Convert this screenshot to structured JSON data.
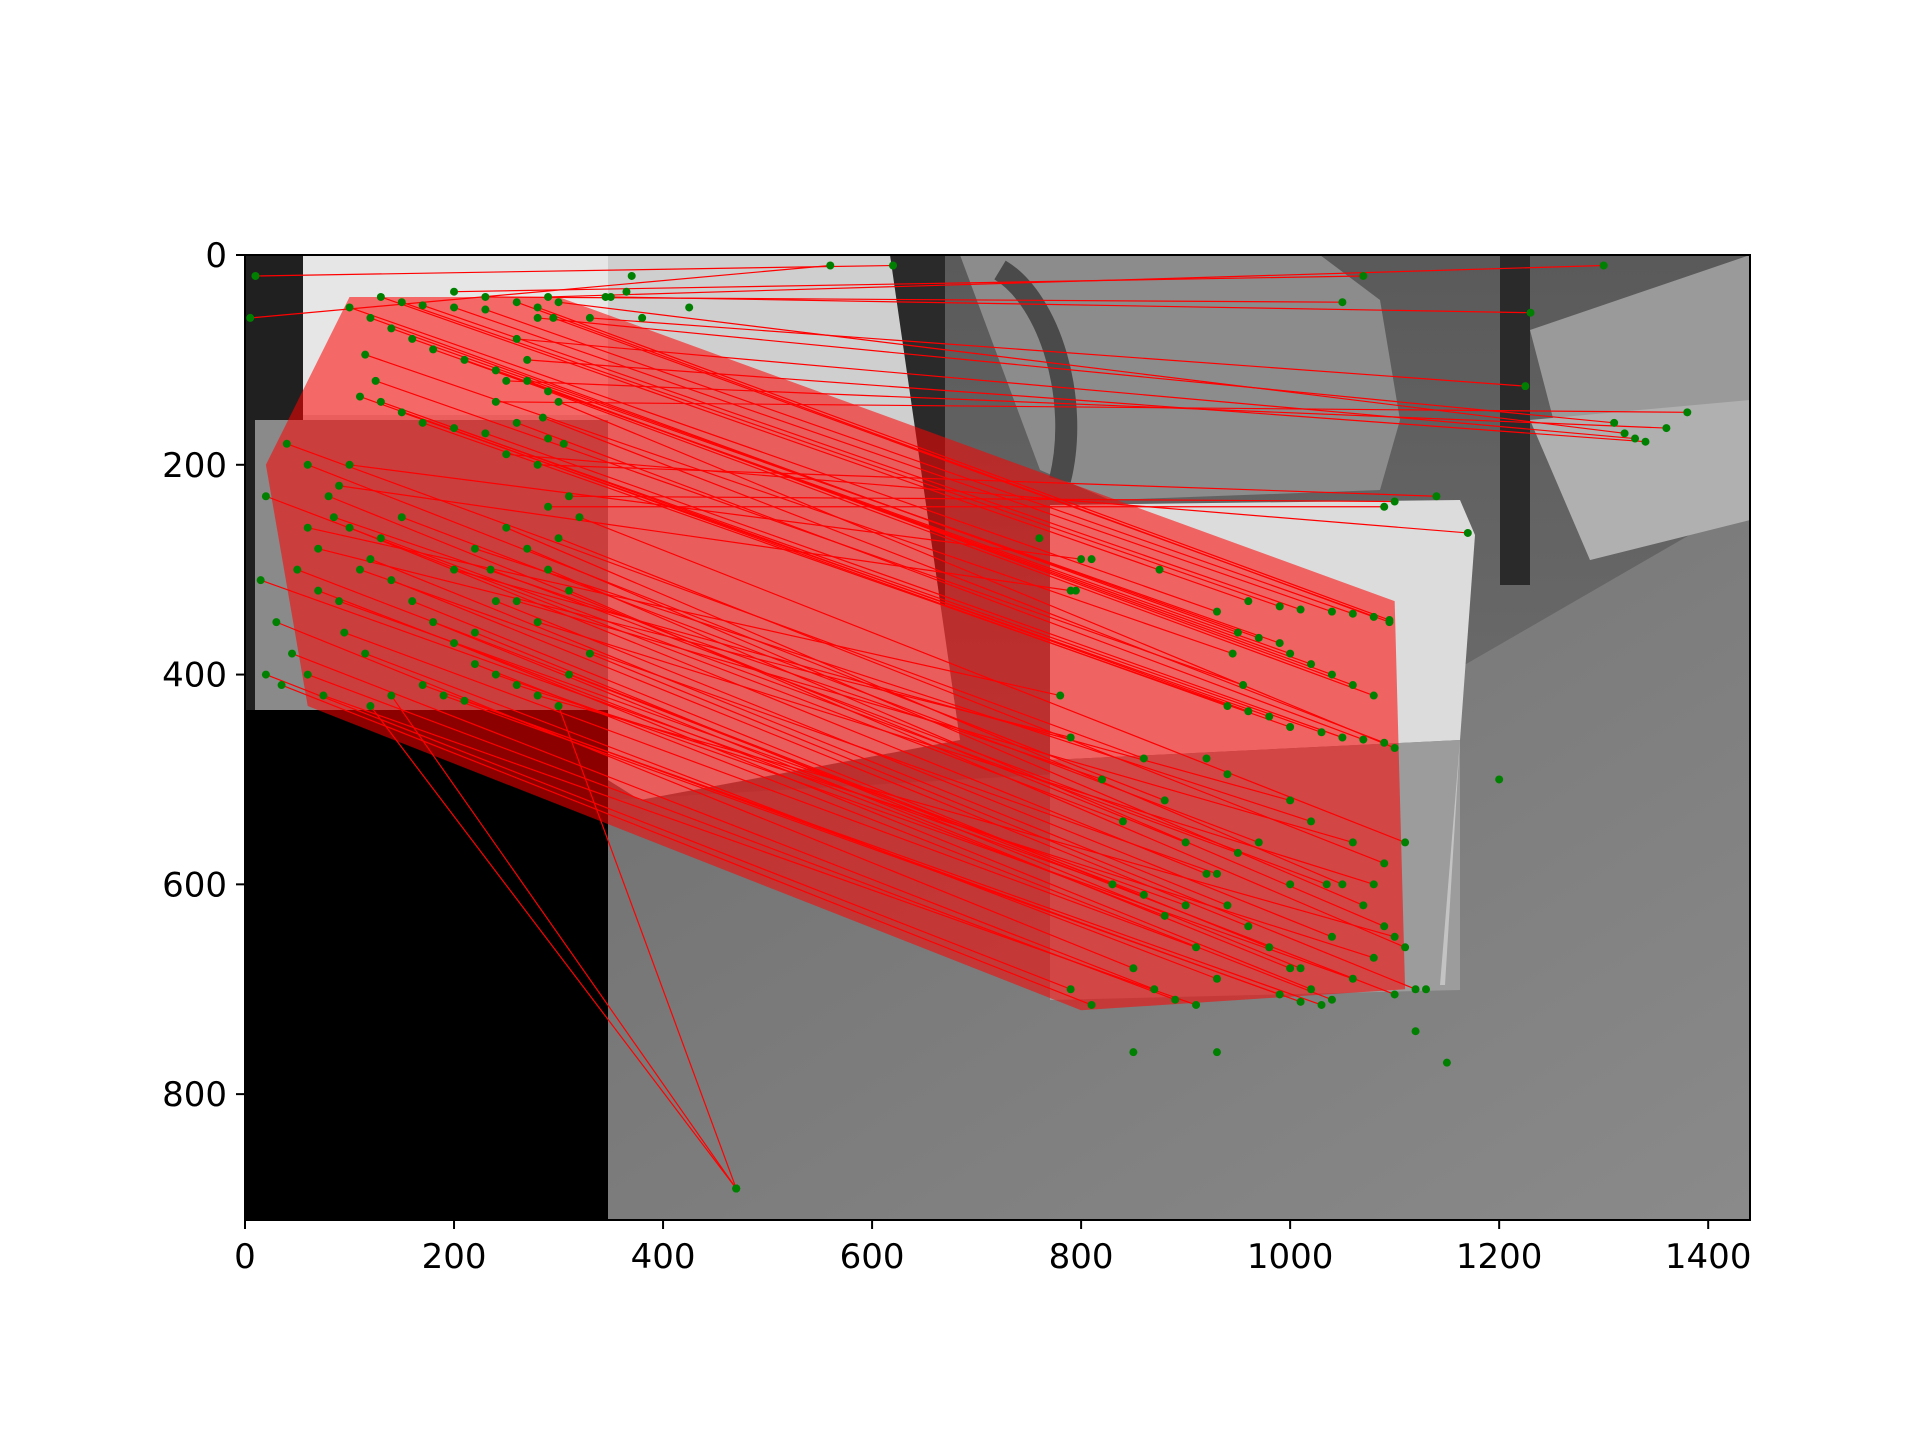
{
  "chart_data": {
    "type": "scatter",
    "title": "",
    "xlabel": "",
    "ylabel": "",
    "xlim": [
      0,
      1440
    ],
    "ylim": [
      920,
      0
    ],
    "x_ticks": [
      0,
      200,
      400,
      600,
      800,
      1000,
      1200,
      1400
    ],
    "x_tick_labels": [
      "0",
      "200",
      "400",
      "600",
      "800",
      "1000",
      "1200",
      "1400"
    ],
    "y_ticks": [
      0,
      200,
      400,
      600,
      800
    ],
    "y_tick_labels": [
      "0",
      "200",
      "400",
      "600",
      "800"
    ],
    "grid": false,
    "legend": "none",
    "background_image": "grayscale photo: book box on carpet (right) with query book cover inset (top-left, x 0-350, y 0-440, black below)",
    "line_color": "#ff0000",
    "point_color": "#008000",
    "matches": [
      [
        [
          130,
          40
        ],
        [
          960,
          330
        ]
      ],
      [
        [
          150,
          45
        ],
        [
          990,
          335
        ]
      ],
      [
        [
          170,
          48
        ],
        [
          1010,
          338
        ]
      ],
      [
        [
          200,
          50
        ],
        [
          1040,
          340
        ]
      ],
      [
        [
          230,
          52
        ],
        [
          1060,
          342
        ]
      ],
      [
        [
          260,
          45
        ],
        [
          1080,
          345
        ]
      ],
      [
        [
          280,
          50
        ],
        [
          1095,
          348
        ]
      ],
      [
        [
          120,
          60
        ],
        [
          950,
          360
        ]
      ],
      [
        [
          140,
          70
        ],
        [
          970,
          365
        ]
      ],
      [
        [
          160,
          80
        ],
        [
          990,
          370
        ]
      ],
      [
        [
          180,
          90
        ],
        [
          1000,
          380
        ]
      ],
      [
        [
          210,
          100
        ],
        [
          1020,
          390
        ]
      ],
      [
        [
          240,
          110
        ],
        [
          1040,
          400
        ]
      ],
      [
        [
          270,
          120
        ],
        [
          1060,
          410
        ]
      ],
      [
        [
          290,
          130
        ],
        [
          1080,
          420
        ]
      ],
      [
        [
          110,
          135
        ],
        [
          940,
          430
        ]
      ],
      [
        [
          130,
          140
        ],
        [
          960,
          435
        ]
      ],
      [
        [
          150,
          150
        ],
        [
          980,
          440
        ]
      ],
      [
        [
          170,
          160
        ],
        [
          1000,
          450
        ]
      ],
      [
        [
          200,
          165
        ],
        [
          1030,
          455
        ]
      ],
      [
        [
          230,
          170
        ],
        [
          1050,
          460
        ]
      ],
      [
        [
          260,
          160
        ],
        [
          1070,
          462
        ]
      ],
      [
        [
          285,
          155
        ],
        [
          1090,
          465
        ]
      ],
      [
        [
          300,
          140
        ],
        [
          1100,
          470
        ]
      ],
      [
        [
          100,
          50
        ],
        [
          930,
          340
        ]
      ],
      [
        [
          115,
          95
        ],
        [
          945,
          380
        ]
      ],
      [
        [
          125,
          120
        ],
        [
          955,
          410
        ]
      ],
      [
        [
          295,
          60
        ],
        [
          1095,
          350
        ]
      ],
      [
        [
          60,
          200
        ],
        [
          880,
          520
        ]
      ],
      [
        [
          80,
          230
        ],
        [
          900,
          560
        ]
      ],
      [
        [
          100,
          260
        ],
        [
          920,
          590
        ]
      ],
      [
        [
          120,
          290
        ],
        [
          940,
          620
        ]
      ],
      [
        [
          140,
          310
        ],
        [
          960,
          640
        ]
      ],
      [
        [
          160,
          330
        ],
        [
          980,
          660
        ]
      ],
      [
        [
          180,
          350
        ],
        [
          1000,
          680
        ]
      ],
      [
        [
          200,
          370
        ],
        [
          1020,
          700
        ]
      ],
      [
        [
          220,
          390
        ],
        [
          1040,
          710
        ]
      ],
      [
        [
          240,
          400
        ],
        [
          1060,
          690
        ]
      ],
      [
        [
          260,
          410
        ],
        [
          1080,
          670
        ]
      ],
      [
        [
          280,
          420
        ],
        [
          1100,
          650
        ]
      ],
      [
        [
          30,
          350
        ],
        [
          850,
          680
        ]
      ],
      [
        [
          45,
          380
        ],
        [
          870,
          700
        ]
      ],
      [
        [
          60,
          400
        ],
        [
          890,
          710
        ]
      ],
      [
        [
          75,
          420
        ],
        [
          910,
          715
        ]
      ],
      [
        [
          90,
          330
        ],
        [
          900,
          620
        ]
      ],
      [
        [
          110,
          300
        ],
        [
          930,
          590
        ]
      ],
      [
        [
          130,
          270
        ],
        [
          950,
          570
        ]
      ],
      [
        [
          150,
          250
        ],
        [
          970,
          560
        ]
      ],
      [
        [
          250,
          260
        ],
        [
          1050,
          600
        ]
      ],
      [
        [
          270,
          280
        ],
        [
          1070,
          620
        ]
      ],
      [
        [
          290,
          300
        ],
        [
          1090,
          640
        ]
      ],
      [
        [
          310,
          320
        ],
        [
          1110,
          660
        ]
      ],
      [
        [
          320,
          250
        ],
        [
          1110,
          560
        ]
      ],
      [
        [
          300,
          270
        ],
        [
          1090,
          580
        ]
      ],
      [
        [
          240,
          330
        ],
        [
          1040,
          650
        ]
      ],
      [
        [
          220,
          360
        ],
        [
          1010,
          680
        ]
      ],
      [
        [
          40,
          180
        ],
        [
          860,
          480
        ]
      ],
      [
        [
          20,
          230
        ],
        [
          840,
          540
        ]
      ],
      [
        [
          15,
          310
        ],
        [
          830,
          600
        ]
      ],
      [
        [
          50,
          300
        ],
        [
          860,
          610
        ]
      ],
      [
        [
          70,
          320
        ],
        [
          880,
          630
        ]
      ],
      [
        [
          95,
          360
        ],
        [
          910,
          660
        ]
      ],
      [
        [
          115,
          380
        ],
        [
          930,
          690
        ]
      ],
      [
        [
          170,
          410
        ],
        [
          990,
          705
        ]
      ],
      [
        [
          190,
          420
        ],
        [
          1010,
          712
        ]
      ],
      [
        [
          210,
          425
        ],
        [
          1030,
          715
        ]
      ],
      [
        [
          330,
          380
        ],
        [
          1120,
          700
        ]
      ],
      [
        [
          310,
          400
        ],
        [
          1100,
          705
        ]
      ],
      [
        [
          10,
          20
        ],
        [
          620,
          10
        ]
      ],
      [
        [
          5,
          60
        ],
        [
          560,
          10
        ]
      ],
      [
        [
          290,
          40
        ],
        [
          1300,
          10
        ]
      ],
      [
        [
          300,
          45
        ],
        [
          1320,
          170
        ]
      ],
      [
        [
          280,
          60
        ],
        [
          1310,
          160
        ]
      ],
      [
        [
          260,
          80
        ],
        [
          1330,
          175
        ]
      ],
      [
        [
          270,
          100
        ],
        [
          1340,
          178
        ]
      ],
      [
        [
          250,
          120
        ],
        [
          1360,
          165
        ]
      ],
      [
        [
          240,
          140
        ],
        [
          1380,
          150
        ]
      ],
      [
        [
          230,
          40
        ],
        [
          1050,
          45
        ]
      ],
      [
        [
          200,
          35
        ],
        [
          1070,
          20
        ]
      ],
      [
        [
          350,
          40
        ],
        [
          1230,
          55
        ]
      ],
      [
        [
          330,
          60
        ],
        [
          1225,
          125
        ]
      ],
      [
        [
          120,
          430
        ],
        [
          470,
          890
        ]
      ],
      [
        [
          140,
          420
        ],
        [
          470,
          890
        ]
      ],
      [
        [
          300,
          430
        ],
        [
          470,
          890
        ]
      ],
      [
        [
          20,
          400
        ],
        [
          790,
          700
        ]
      ],
      [
        [
          35,
          410
        ],
        [
          810,
          715
        ]
      ],
      [
        [
          290,
          240
        ],
        [
          1090,
          240
        ]
      ],
      [
        [
          310,
          230
        ],
        [
          1100,
          235
        ]
      ],
      [
        [
          280,
          200
        ],
        [
          1140,
          230
        ]
      ],
      [
        [
          250,
          190
        ],
        [
          1170,
          265
        ]
      ],
      [
        [
          100,
          200
        ],
        [
          800,
          290
        ]
      ],
      [
        [
          90,
          220
        ],
        [
          790,
          320
        ]
      ],
      [
        [
          60,
          260
        ],
        [
          780,
          420
        ]
      ],
      [
        [
          70,
          280
        ],
        [
          790,
          460
        ]
      ],
      [
        [
          85,
          250
        ],
        [
          820,
          500
        ]
      ],
      [
        [
          200,
          300
        ],
        [
          1000,
          520
        ]
      ],
      [
        [
          220,
          280
        ],
        [
          1020,
          540
        ]
      ],
      [
        [
          235,
          300
        ],
        [
          1035,
          600
        ]
      ],
      [
        [
          260,
          330
        ],
        [
          1060,
          560
        ]
      ],
      [
        [
          280,
          350
        ],
        [
          1080,
          600
        ]
      ]
    ],
    "extra_points": [
      [
        370,
        20
      ],
      [
        365,
        35
      ],
      [
        380,
        60
      ],
      [
        425,
        50
      ],
      [
        345,
        40
      ],
      [
        290,
        175
      ],
      [
        305,
        180
      ],
      [
        760,
        270
      ],
      [
        810,
        290
      ],
      [
        795,
        320
      ],
      [
        875,
        300
      ],
      [
        920,
        480
      ],
      [
        940,
        495
      ],
      [
        1000,
        600
      ],
      [
        1130,
        700
      ],
      [
        1120,
        740
      ],
      [
        1150,
        770
      ],
      [
        850,
        760
      ],
      [
        930,
        760
      ],
      [
        1200,
        500
      ]
    ]
  }
}
